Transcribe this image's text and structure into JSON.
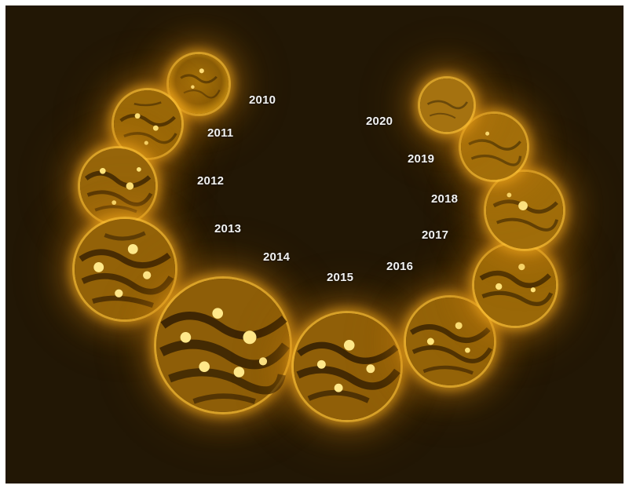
{
  "image": {
    "description_colors": {
      "background": "#221705",
      "sun_core": "#b07a08",
      "sun_bright": "#ffd24a",
      "sun_dark": "#2a1a02"
    },
    "years": [
      {
        "label": "2010"
      },
      {
        "label": "2011"
      },
      {
        "label": "2012"
      },
      {
        "label": "2013"
      },
      {
        "label": "2014"
      },
      {
        "label": "2015"
      },
      {
        "label": "2016"
      },
      {
        "label": "2017"
      },
      {
        "label": "2018"
      },
      {
        "label": "2019"
      },
      {
        "label": "2020"
      }
    ]
  }
}
